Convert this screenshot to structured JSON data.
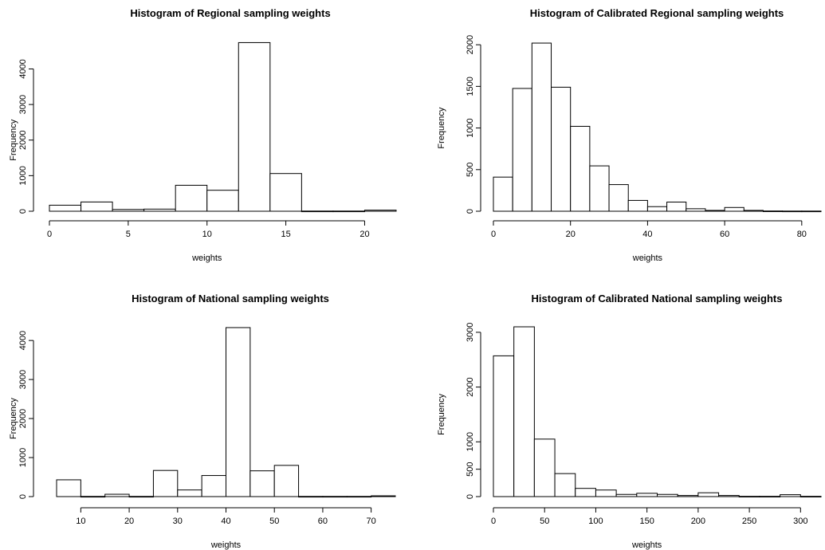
{
  "chart_data": [
    {
      "type": "bar",
      "title": "Histogram of Regional sampling weights",
      "xlabel": "weights",
      "ylabel": "Frequency",
      "xlim": [
        0,
        22
      ],
      "ylim": [
        0,
        4750
      ],
      "x_ticks": [
        0,
        5,
        10,
        15,
        20
      ],
      "y_ticks": [
        0,
        1000,
        2000,
        3000,
        4000
      ],
      "bins": [
        [
          0,
          2
        ],
        [
          2,
          4
        ],
        [
          4,
          6
        ],
        [
          6,
          8
        ],
        [
          8,
          10
        ],
        [
          10,
          12
        ],
        [
          12,
          14
        ],
        [
          14,
          16
        ],
        [
          16,
          18
        ],
        [
          18,
          20
        ],
        [
          20,
          22
        ]
      ],
      "values": [
        170,
        260,
        50,
        60,
        730,
        590,
        4740,
        1060,
        5,
        5,
        30
      ]
    },
    {
      "type": "bar",
      "title": "Histogram of Calibrated Regional sampling weights",
      "xlabel": "weights",
      "ylabel": "Frequency",
      "xlim": [
        0,
        85
      ],
      "ylim": [
        0,
        2030
      ],
      "x_ticks": [
        0,
        20,
        40,
        60,
        80
      ],
      "y_ticks": [
        0,
        500,
        1000,
        1500,
        2000
      ],
      "bins": [
        [
          0,
          5
        ],
        [
          5,
          10
        ],
        [
          10,
          15
        ],
        [
          15,
          20
        ],
        [
          20,
          25
        ],
        [
          25,
          30
        ],
        [
          30,
          35
        ],
        [
          35,
          40
        ],
        [
          40,
          45
        ],
        [
          45,
          50
        ],
        [
          50,
          55
        ],
        [
          55,
          60
        ],
        [
          60,
          65
        ],
        [
          65,
          70
        ],
        [
          70,
          75
        ],
        [
          75,
          80
        ],
        [
          80,
          85
        ]
      ],
      "values": [
        410,
        1475,
        2020,
        1490,
        1020,
        545,
        320,
        130,
        55,
        110,
        30,
        10,
        45,
        10,
        3,
        2,
        2
      ]
    },
    {
      "type": "bar",
      "title": "Histogram of National sampling weights",
      "xlabel": "weights",
      "ylabel": "Frequency",
      "xlim": [
        5,
        75
      ],
      "ylim": [
        0,
        4350
      ],
      "x_ticks": [
        10,
        20,
        30,
        40,
        50,
        60,
        70
      ],
      "y_ticks": [
        0,
        1000,
        2000,
        3000,
        4000
      ],
      "bins": [
        [
          5,
          10
        ],
        [
          10,
          15
        ],
        [
          15,
          20
        ],
        [
          20,
          25
        ],
        [
          25,
          30
        ],
        [
          30,
          35
        ],
        [
          35,
          40
        ],
        [
          40,
          45
        ],
        [
          45,
          50
        ],
        [
          50,
          55
        ],
        [
          55,
          60
        ],
        [
          60,
          65
        ],
        [
          65,
          70
        ],
        [
          70,
          75
        ]
      ],
      "values": [
        430,
        5,
        60,
        5,
        670,
        170,
        540,
        4330,
        660,
        800,
        5,
        5,
        5,
        20
      ]
    },
    {
      "type": "bar",
      "title": "Histogram of Calibrated National sampling weights",
      "xlabel": "weights",
      "ylabel": "Frequency",
      "xlim": [
        0,
        320
      ],
      "ylim": [
        0,
        3100
      ],
      "x_ticks": [
        0,
        50,
        100,
        150,
        200,
        250,
        300
      ],
      "y_ticks": [
        0,
        500,
        1000,
        2000,
        3000
      ],
      "bins": [
        [
          0,
          20
        ],
        [
          20,
          40
        ],
        [
          40,
          60
        ],
        [
          60,
          80
        ],
        [
          80,
          100
        ],
        [
          100,
          120
        ],
        [
          120,
          140
        ],
        [
          140,
          160
        ],
        [
          160,
          180
        ],
        [
          180,
          200
        ],
        [
          200,
          220
        ],
        [
          220,
          240
        ],
        [
          240,
          260
        ],
        [
          260,
          280
        ],
        [
          280,
          300
        ],
        [
          300,
          320
        ]
      ],
      "values": [
        2570,
        3100,
        1050,
        420,
        150,
        120,
        40,
        60,
        40,
        20,
        70,
        20,
        5,
        5,
        35,
        5
      ]
    }
  ]
}
